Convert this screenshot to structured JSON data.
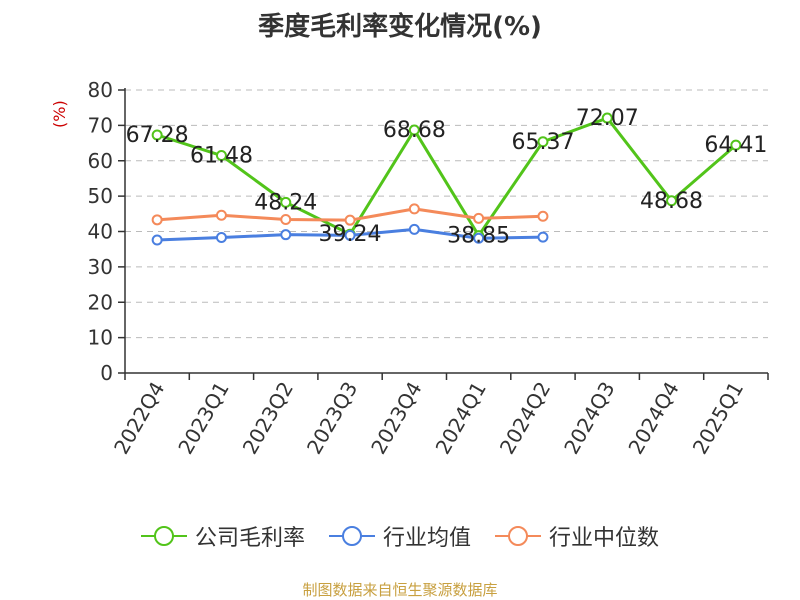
{
  "chart_data": {
    "type": "line",
    "title": "季度毛利率变化情况(%)",
    "ylabel": "(%)",
    "ylim": [
      0,
      80
    ],
    "yticks": [
      0,
      10,
      20,
      30,
      40,
      50,
      60,
      70,
      80
    ],
    "categories": [
      "2022Q4",
      "2023Q1",
      "2023Q2",
      "2023Q3",
      "2023Q4",
      "2024Q1",
      "2024Q2",
      "2024Q3",
      "2024Q4",
      "2025Q1"
    ],
    "grid": true,
    "legend_position": "bottom",
    "series": [
      {
        "name": "公司毛利率",
        "color": "#52c41a",
        "show_labels": true,
        "values": [
          67.28,
          61.48,
          48.24,
          39.24,
          68.68,
          38.85,
          65.37,
          72.07,
          48.68,
          64.41
        ],
        "labels": [
          "67.28",
          "61.48",
          "48.24",
          "39.24",
          "68.68",
          "38.85",
          "65.37",
          "72.07",
          "48.68",
          "64.41"
        ]
      },
      {
        "name": "行业均值",
        "color": "#4a7fe0",
        "show_labels": false,
        "values": [
          37.6,
          38.3,
          39.1,
          38.9,
          40.6,
          38.1,
          38.4,
          null,
          null,
          null
        ]
      },
      {
        "name": "行业中位数",
        "color": "#f48a5a",
        "show_labels": false,
        "values": [
          43.3,
          44.6,
          43.4,
          43.2,
          46.4,
          43.7,
          44.3,
          null,
          null,
          null
        ]
      }
    ]
  },
  "source": "制图数据来自恒生聚源数据库"
}
